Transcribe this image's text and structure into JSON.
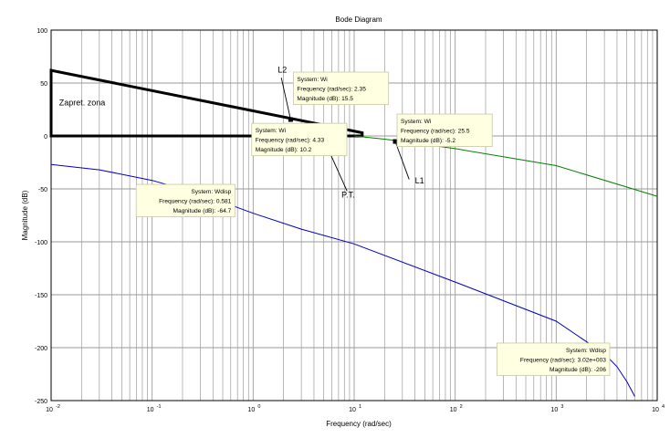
{
  "chart_data": {
    "type": "line",
    "title": "Bode Diagram",
    "xlabel": "Frequency  (rad/sec)",
    "ylabel": "Magnitude (dB)",
    "x_scale": "log",
    "xlim": [
      0.01,
      10000
    ],
    "ylim": [
      -250,
      100
    ],
    "grid": true,
    "x_ticks": [
      {
        "value": 0.01,
        "base": "10",
        "exp": "-2"
      },
      {
        "value": 0.1,
        "base": "10",
        "exp": "-1"
      },
      {
        "value": 1,
        "base": "10",
        "exp": "0"
      },
      {
        "value": 10,
        "base": "10",
        "exp": "1"
      },
      {
        "value": 100,
        "base": "10",
        "exp": "2"
      },
      {
        "value": 1000,
        "base": "10",
        "exp": "3"
      },
      {
        "value": 10000,
        "base": "10",
        "exp": "4"
      }
    ],
    "y_ticks": [
      100,
      50,
      0,
      -50,
      -100,
      -150,
      -200,
      -250
    ],
    "series": [
      {
        "color": "#008000",
        "x": [
          10,
          20,
          50,
          100,
          1000,
          10000
        ],
        "y": [
          0,
          -3,
          -8,
          -12,
          -28,
          -57
        ]
      },
      {
        "color": "#0000c0",
        "x": [
          0.01,
          0.03,
          0.1,
          0.3,
          0.581,
          1,
          3,
          10,
          100,
          1000,
          3020,
          4000,
          5000,
          6000
        ],
        "y": [
          -27,
          -32,
          -42,
          -55,
          -64.7,
          -73,
          -88,
          -102,
          -138,
          -175,
          -206,
          -218,
          -232,
          -246
        ]
      }
    ],
    "shapes": [
      {
        "kind": "polygon",
        "color": "#000000",
        "points": [
          [
            0.01,
            62
          ],
          [
            12,
            3
          ],
          [
            12,
            0
          ],
          [
            0.01,
            0
          ]
        ]
      }
    ],
    "datatips": [
      {
        "x": 2.35,
        "y": 15.5,
        "lines": [
          "System: Wi",
          "Frequency (rad/sec): 2.35",
          "Magnitude (dB): 15.5"
        ]
      },
      {
        "x": 4.33,
        "y": 10.2,
        "lines": [
          "System: Wi",
          "Frequency (rad/sec): 4.33",
          "Magnitude (dB): 10.2"
        ]
      },
      {
        "x": 25.5,
        "y": -5.2,
        "lines": [
          "System: Wi",
          "Frequency (rad/sec): 25.5",
          "Magnitude (dB): -5.2"
        ]
      },
      {
        "x": 0.581,
        "y": -64.7,
        "lines": [
          "System: Wdisp",
          "Frequency (rad/sec): 0.581",
          "Magnitude (dB): -64.7"
        ]
      },
      {
        "x": 3020,
        "y": -206,
        "lines": [
          "System: Wdisp",
          "Frequency (rad/sec): 3.02e+003",
          "Magnitude (dB): -206"
        ]
      }
    ],
    "annotations": [
      {
        "text": "Zapret. zona",
        "x": 0.012,
        "y": 29
      },
      {
        "text": "L2",
        "x": 1.75,
        "y": 60
      },
      {
        "text": "P.T.",
        "x": 7.5,
        "y": -58
      },
      {
        "text": "L1",
        "x": 40,
        "y": -45
      }
    ],
    "arrows": [
      {
        "from": [
          1.9,
          55
        ],
        "to": [
          2.35,
          15.5
        ]
      },
      {
        "from": [
          8.5,
          -52
        ],
        "to": [
          4.33,
          10.2
        ]
      },
      {
        "from": [
          35,
          -41
        ],
        "to": [
          25.5,
          -5.2
        ]
      }
    ]
  }
}
